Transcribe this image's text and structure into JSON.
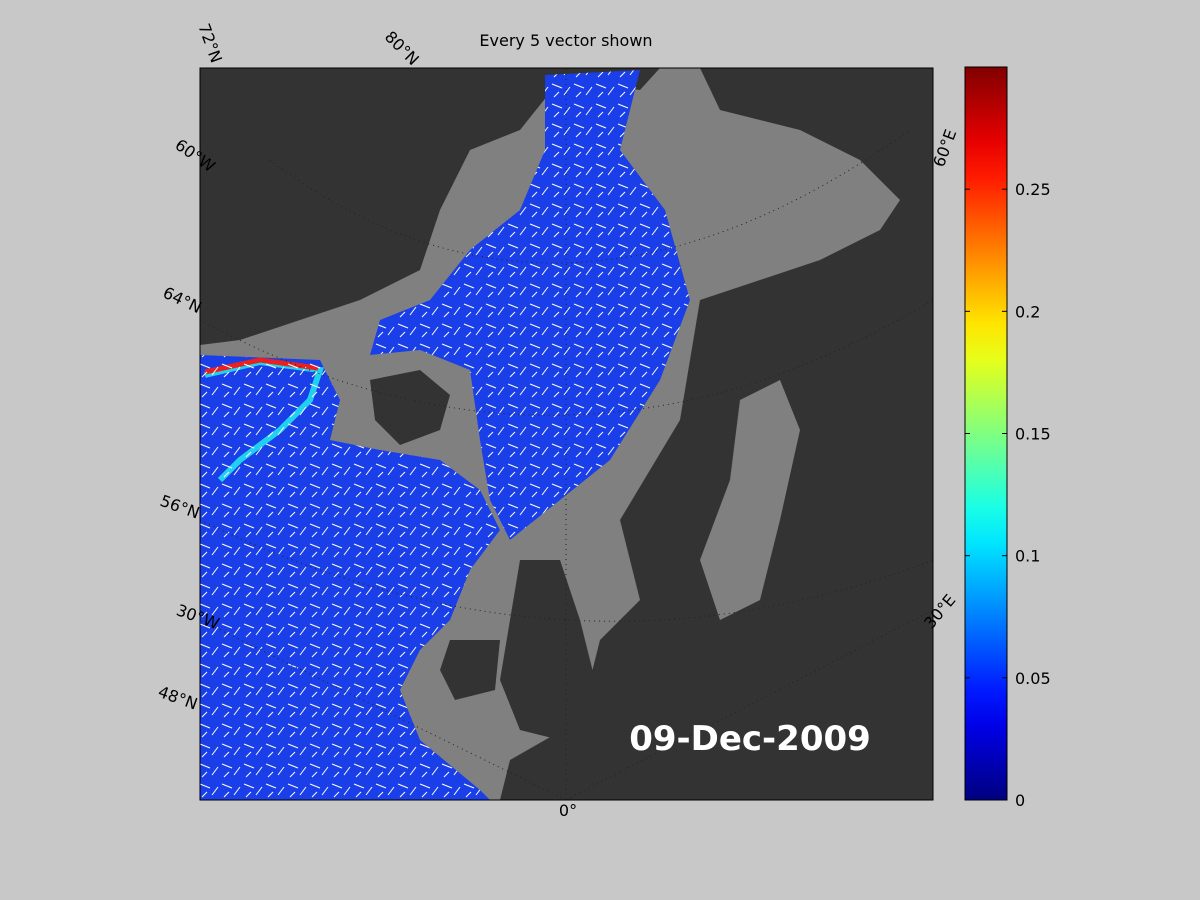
{
  "title": "Every 5 vector shown",
  "date_label": "09-Dec-2009",
  "graticule_labels": [
    "72°N",
    "80°N",
    "60°W",
    "64°N",
    "56°N",
    "30°W",
    "48°N",
    "0°",
    "30°E",
    "60°E"
  ],
  "colorbar": {
    "colormap": "jet",
    "limits": [
      0,
      0.3
    ],
    "ticks": [
      0,
      0.05,
      0.1,
      0.15,
      0.2,
      0.25
    ]
  }
}
